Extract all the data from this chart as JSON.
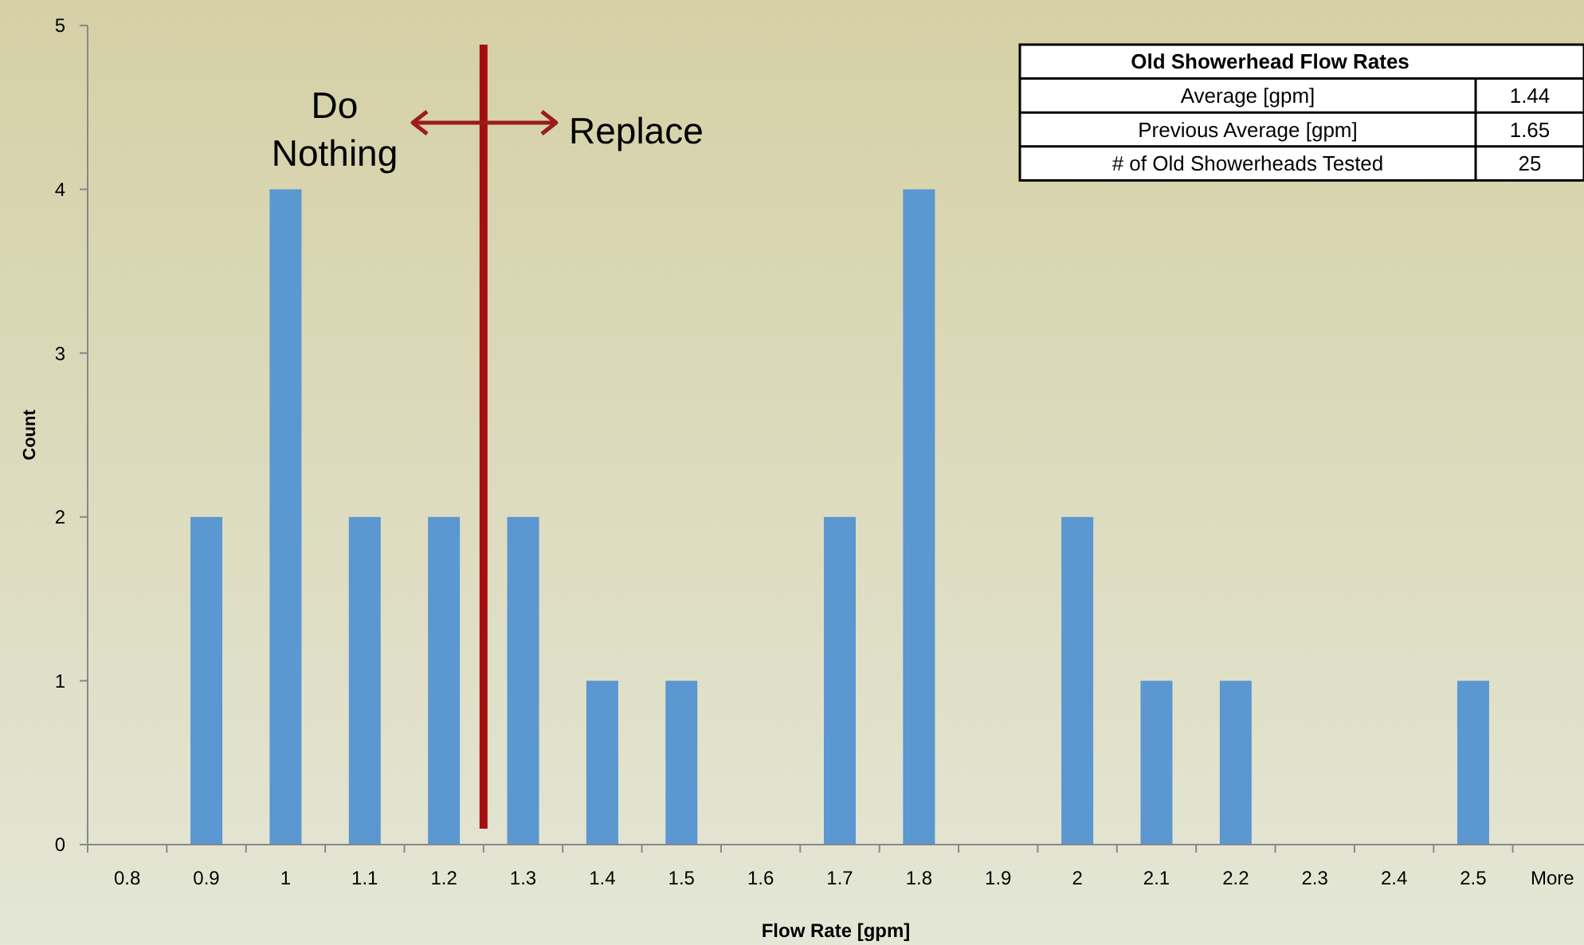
{
  "chart_data": {
    "type": "bar",
    "xlabel": "Flow Rate [gpm]",
    "ylabel": "Count",
    "categories": [
      "0.8",
      "0.9",
      "1",
      "1.1",
      "1.2",
      "1.3",
      "1.4",
      "1.5",
      "1.6",
      "1.7",
      "1.8",
      "1.9",
      "2",
      "2.1",
      "2.2",
      "2.3",
      "2.4",
      "2.5",
      "More"
    ],
    "values": [
      0,
      2,
      4,
      2,
      2,
      2,
      1,
      1,
      0,
      2,
      4,
      0,
      2,
      1,
      1,
      0,
      0,
      1,
      0
    ],
    "color": "#5b97d0",
    "ylim": [
      0,
      5
    ],
    "yticks": [
      0,
      1,
      2,
      3,
      4,
      5
    ],
    "grid": false,
    "annotations": [
      "Do Nothing",
      "Replace",
      "Old Showerhead Flow Rates",
      "Average [gpm]",
      "1.44",
      "Previous Average [gpm]",
      "1.65",
      "# of Old Showerheads Tested",
      "25"
    ]
  }
}
